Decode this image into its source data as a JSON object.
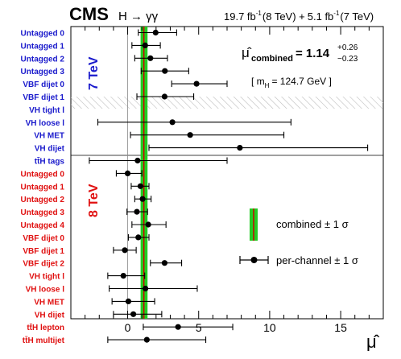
{
  "header": {
    "experiment": "CMS",
    "channel": "H → γγ",
    "lumi_8tev": "19.7 fb",
    "lumi_8tev_suffix": "(8 TeV) +",
    "lumi_7tev": "5.1 fb",
    "lumi_7tev_suffix": "(7 TeV)",
    "lumi_exp": "-1"
  },
  "annotations": {
    "combined_label": "combined",
    "combined_value": "= 1.14",
    "combined_up": "+0.26",
    "combined_down": "−0.23",
    "mass_label": "[ m",
    "mass_sub": "H",
    "mass_value": "= 124.7 GeV ]",
    "era_7tev": "7 TeV",
    "era_8tev": "8 TeV",
    "legend_combined": "combined ± 1 σ",
    "legend_channel": "per-channel ± 1 σ"
  },
  "colors": {
    "tev7": "#1a1acc",
    "tev8": "#e01010",
    "band": "#22cc22",
    "band_line": "#cc0000"
  },
  "chart_data": {
    "type": "scatter",
    "title": "CMS H → γγ",
    "xlabel": "μ̂",
    "xlim": [
      -4,
      18
    ],
    "xticks": [
      0,
      5,
      10,
      15
    ],
    "combined": {
      "value": 1.14,
      "up": 0.26,
      "down": 0.23
    },
    "series": [
      {
        "name": "7 TeV",
        "categories": [
          {
            "label": "Untagged 0",
            "mu": 1.97,
            "lo": 0.75,
            "hi": 3.45
          },
          {
            "label": "Untagged 1",
            "mu": 1.23,
            "lo": 0.3,
            "hi": 2.3
          },
          {
            "label": "Untagged 2",
            "mu": 1.6,
            "lo": 0.5,
            "hi": 2.8
          },
          {
            "label": "Untagged 3",
            "mu": 2.62,
            "lo": 0.95,
            "hi": 4.3
          },
          {
            "label": "VBF dijet 0",
            "mu": 4.85,
            "lo": 3.1,
            "hi": 7.0
          },
          {
            "label": "VBF dijet 1",
            "mu": 2.6,
            "lo": 0.65,
            "hi": 4.65
          },
          {
            "label": "VH tight l",
            "mu": null
          },
          {
            "label": "VH loose l",
            "mu": 3.15,
            "lo": -2.1,
            "hi": 11.5
          },
          {
            "label": "VH MET",
            "mu": 4.4,
            "lo": 0.2,
            "hi": 11.0
          },
          {
            "label": "VH dijet",
            "mu": 7.9,
            "lo": 1.5,
            "hi": 16.9
          },
          {
            "label": "tt̄H tags",
            "mu": 0.7,
            "lo": -2.7,
            "hi": 7.0
          }
        ]
      },
      {
        "name": "8 TeV",
        "categories": [
          {
            "label": "Untagged 0",
            "mu": 0.0,
            "lo": -0.8,
            "hi": 1.0
          },
          {
            "label": "Untagged 1",
            "mu": 0.9,
            "lo": 0.25,
            "hi": 1.5
          },
          {
            "label": "Untagged 2",
            "mu": 1.05,
            "lo": 0.5,
            "hi": 1.65
          },
          {
            "label": "Untagged 3",
            "mu": 0.65,
            "lo": -0.05,
            "hi": 1.4
          },
          {
            "label": "Untagged 4",
            "mu": 1.45,
            "lo": 0.3,
            "hi": 2.7
          },
          {
            "label": "VBF dijet 0",
            "mu": 0.75,
            "lo": 0.05,
            "hi": 1.5
          },
          {
            "label": "VBF dijet 1",
            "mu": -0.2,
            "lo": -1.0,
            "hi": 0.6
          },
          {
            "label": "VBF dijet 2",
            "mu": 2.6,
            "lo": 1.6,
            "hi": 3.8
          },
          {
            "label": "VH tight l",
            "mu": -0.3,
            "lo": -1.4,
            "hi": 1.2
          },
          {
            "label": "VH loose l",
            "mu": 1.25,
            "lo": -1.3,
            "hi": 4.9
          },
          {
            "label": "VH MET",
            "mu": 0.05,
            "lo": -1.1,
            "hi": 1.9
          },
          {
            "label": "VH dijet",
            "mu": 0.4,
            "lo": -1.0,
            "hi": 2.4
          },
          {
            "label": "tt̄H lepton",
            "mu": 3.55,
            "lo": 1.1,
            "hi": 7.4
          },
          {
            "label": "tt̄H multijet",
            "mu": 1.35,
            "lo": -1.4,
            "hi": 5.5
          }
        ]
      }
    ]
  }
}
